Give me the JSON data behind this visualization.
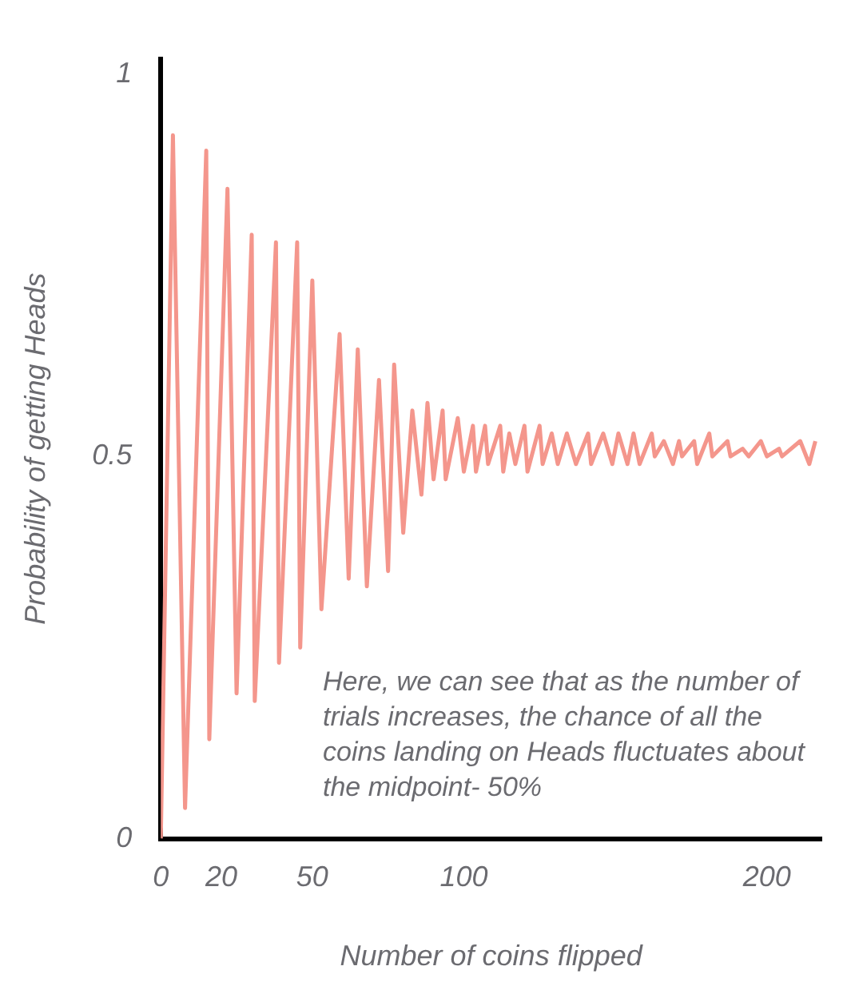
{
  "chart_data": {
    "type": "line",
    "xlabel": "Number of coins flipped",
    "ylabel": "Probability of getting Heads",
    "annotations": [
      "Here, we can see that as the number of trials increases, the chance of all the coins landing on Heads fluctuates about the midpoint- 50%"
    ],
    "series": [
      {
        "color": "#f4968c",
        "x": [
          0,
          4,
          8,
          15,
          16,
          22,
          25,
          30,
          31,
          38,
          39,
          45,
          46,
          50,
          53,
          59,
          62,
          65,
          68,
          72,
          75,
          77,
          80,
          83,
          86,
          88,
          90,
          93,
          94,
          98,
          100,
          103,
          104,
          107,
          108,
          112,
          113,
          115,
          117,
          120,
          121,
          125,
          126,
          129,
          131,
          134,
          137,
          141,
          142,
          146,
          149,
          151,
          154,
          156,
          158,
          162,
          163,
          166,
          169,
          171,
          172,
          176,
          177,
          181,
          182,
          187,
          188,
          192,
          194,
          198,
          200,
          204,
          205,
          211,
          214,
          216
        ],
        "values": [
          0,
          0.92,
          0.04,
          0.9,
          0.13,
          0.85,
          0.19,
          0.79,
          0.18,
          0.78,
          0.23,
          0.78,
          0.25,
          0.73,
          0.3,
          0.66,
          0.34,
          0.64,
          0.33,
          0.6,
          0.35,
          0.62,
          0.4,
          0.56,
          0.45,
          0.57,
          0.47,
          0.56,
          0.47,
          0.55,
          0.48,
          0.54,
          0.48,
          0.54,
          0.49,
          0.54,
          0.48,
          0.53,
          0.49,
          0.54,
          0.48,
          0.54,
          0.49,
          0.53,
          0.49,
          0.53,
          0.49,
          0.53,
          0.49,
          0.53,
          0.49,
          0.53,
          0.49,
          0.53,
          0.49,
          0.53,
          0.5,
          0.52,
          0.49,
          0.52,
          0.5,
          0.52,
          0.49,
          0.53,
          0.5,
          0.52,
          0.5,
          0.51,
          0.5,
          0.52,
          0.5,
          0.51,
          0.5,
          0.52,
          0.49,
          0.52
        ]
      }
    ],
    "xlim": [
      0,
      218
    ],
    "xticks": [
      0,
      20,
      50,
      100,
      200
    ],
    "ylim": [
      0,
      1.02
    ],
    "yticks": [
      0,
      0.5,
      1
    ],
    "grid": false,
    "legend": false,
    "marker": "none",
    "line_style": "solid"
  }
}
